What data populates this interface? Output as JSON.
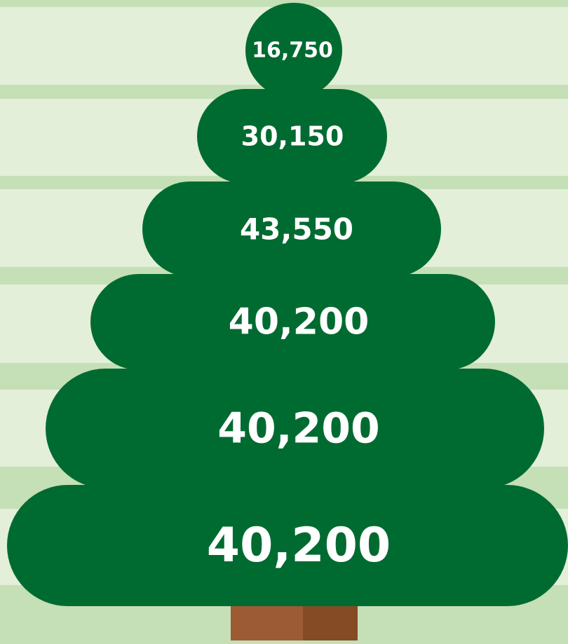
{
  "tiers": [
    {
      "label": "16,750"
    },
    {
      "label": "30,150"
    },
    {
      "label": "43,550"
    },
    {
      "label": "40,200"
    },
    {
      "label": "40,200"
    },
    {
      "label": "40,200"
    }
  ]
}
